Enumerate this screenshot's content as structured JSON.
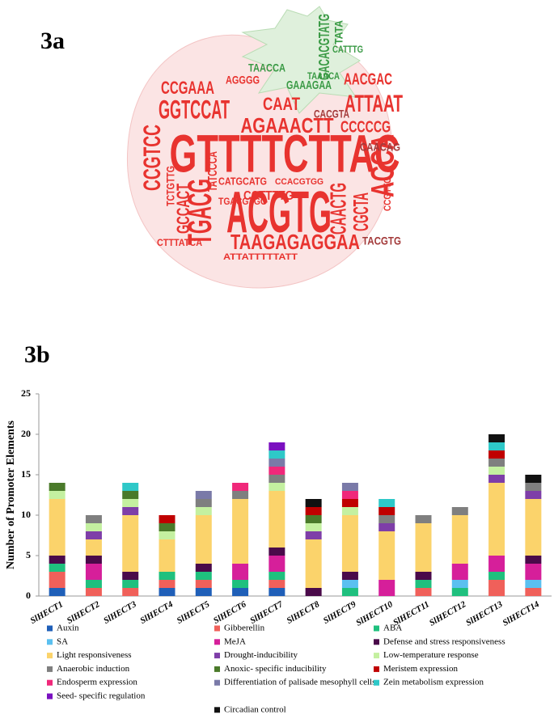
{
  "panels": [
    "3a",
    "3b"
  ],
  "word_cloud": {
    "words": [
      "GTTTTCTTAC",
      "ACGTG",
      "TGACG",
      "AGAAACTT",
      "ATTAAT",
      "CAAT",
      "GGTCCAT",
      "CCGAAA",
      "AACGAC",
      "CCCCCG",
      "CAACTG",
      "CGCTA",
      "ACCA",
      "CCGTCC",
      "TAAGAGAGGAA",
      "CCTTTTG",
      "GCCACT",
      "TATCCCA",
      "CAACAG",
      "TACGTG",
      "GACACGTATG",
      "GAAAGAA",
      "CACGTA",
      "CATTTG",
      "ATTATTTTTATT",
      "CTTTATCA",
      "TCTGTTG",
      "TAAACA",
      "AGGGG",
      "CCGTTG",
      "TATA",
      "CATGCATG",
      "TGACGTGG",
      "CCACGTGG",
      "TAACCA"
    ]
  },
  "chart_data": {
    "type": "stacked_bar",
    "ylabel": "Number of Promoter Elements",
    "categories": [
      "SlHECT1",
      "SlHECT2",
      "SlHECT3",
      "SlHECT4",
      "SlHECT5",
      "SlHECT6",
      "SlHECT7",
      "SlHECT8",
      "SlHECT9",
      "SlHECT10",
      "SlHECT11",
      "SlHECT12",
      "SlHECT13",
      "SlHECT14"
    ],
    "ylim": [
      0,
      25
    ],
    "yticks": [
      0,
      5,
      10,
      15,
      20,
      25
    ],
    "series": [
      {
        "name": "Auxin",
        "color": "#1f5fb8",
        "values": [
          1,
          0,
          0,
          1,
          1,
          1,
          1,
          0,
          0,
          0,
          0,
          0,
          0,
          0
        ]
      },
      {
        "name": "Gibberellin",
        "color": "#f0605a",
        "values": [
          2,
          1,
          1,
          1,
          1,
          0,
          1,
          0,
          0,
          0,
          1,
          0,
          2,
          1
        ]
      },
      {
        "name": "ABA",
        "color": "#1fc07e",
        "values": [
          1,
          1,
          1,
          1,
          1,
          1,
          1,
          0,
          1,
          0,
          1,
          1,
          1,
          0
        ]
      },
      {
        "name": "SA",
        "color": "#5bc0f0",
        "values": [
          0,
          0,
          0,
          0,
          0,
          0,
          0,
          0,
          1,
          0,
          0,
          1,
          0,
          1
        ]
      },
      {
        "name": "MeJA",
        "color": "#d61f9a",
        "values": [
          0,
          2,
          0,
          0,
          0,
          2,
          2,
          0,
          0,
          2,
          0,
          2,
          2,
          2
        ]
      },
      {
        "name": "Defense and stress responsiveness",
        "color": "#4a0a4a",
        "values": [
          1,
          1,
          1,
          0,
          1,
          0,
          1,
          1,
          1,
          0,
          1,
          0,
          0,
          1
        ]
      },
      {
        "name": "Light responsiveness",
        "color": "#fbd36b",
        "values": [
          7,
          2,
          7,
          4,
          6,
          8,
          7,
          6,
          7,
          6,
          6,
          6,
          9,
          7
        ]
      },
      {
        "name": "Drought-inducibility",
        "color": "#7e3ea8",
        "values": [
          0,
          1,
          1,
          0,
          0,
          0,
          0,
          1,
          0,
          1,
          0,
          0,
          1,
          1
        ]
      },
      {
        "name": "Low-temperature response",
        "color": "#c4f0a0",
        "values": [
          1,
          1,
          1,
          1,
          1,
          0,
          1,
          1,
          1,
          0,
          0,
          0,
          1,
          0
        ]
      },
      {
        "name": "Anaerobic induction",
        "color": "#7f7f7f",
        "values": [
          0,
          1,
          0,
          0,
          1,
          1,
          1,
          0,
          0,
          1,
          1,
          1,
          1,
          1
        ]
      },
      {
        "name": "Anoxic- specific inducibility",
        "color": "#4a7a2a",
        "values": [
          1,
          0,
          1,
          1,
          0,
          0,
          0,
          1,
          0,
          0,
          0,
          0,
          0,
          0
        ]
      },
      {
        "name": "Meristem expression",
        "color": "#c00000",
        "values": [
          0,
          0,
          0,
          1,
          0,
          0,
          0,
          1,
          1,
          1,
          0,
          0,
          1,
          0
        ]
      },
      {
        "name": "Endosperm expression",
        "color": "#f0287a",
        "values": [
          0,
          0,
          0,
          0,
          0,
          1,
          1,
          0,
          1,
          0,
          0,
          0,
          0,
          0
        ]
      },
      {
        "name": "Differentiation of palisade mesophyll cells",
        "color": "#7a7aa8",
        "values": [
          0,
          0,
          0,
          0,
          1,
          0,
          1,
          0,
          1,
          0,
          0,
          0,
          0,
          0
        ]
      },
      {
        "name": "Zein metabolism expression",
        "color": "#2ec8c8",
        "values": [
          0,
          0,
          1,
          0,
          0,
          0,
          1,
          0,
          0,
          1,
          0,
          0,
          1,
          0
        ]
      },
      {
        "name": "Seed- specific regulation",
        "color": "#7a10c0",
        "values": [
          0,
          0,
          0,
          0,
          0,
          0,
          1,
          0,
          0,
          0,
          0,
          0,
          0,
          0
        ]
      },
      {
        "name": "Circadian control",
        "color": "#111111",
        "values": [
          0,
          0,
          0,
          0,
          0,
          0,
          0,
          1,
          0,
          0,
          0,
          0,
          1,
          1
        ]
      }
    ]
  }
}
